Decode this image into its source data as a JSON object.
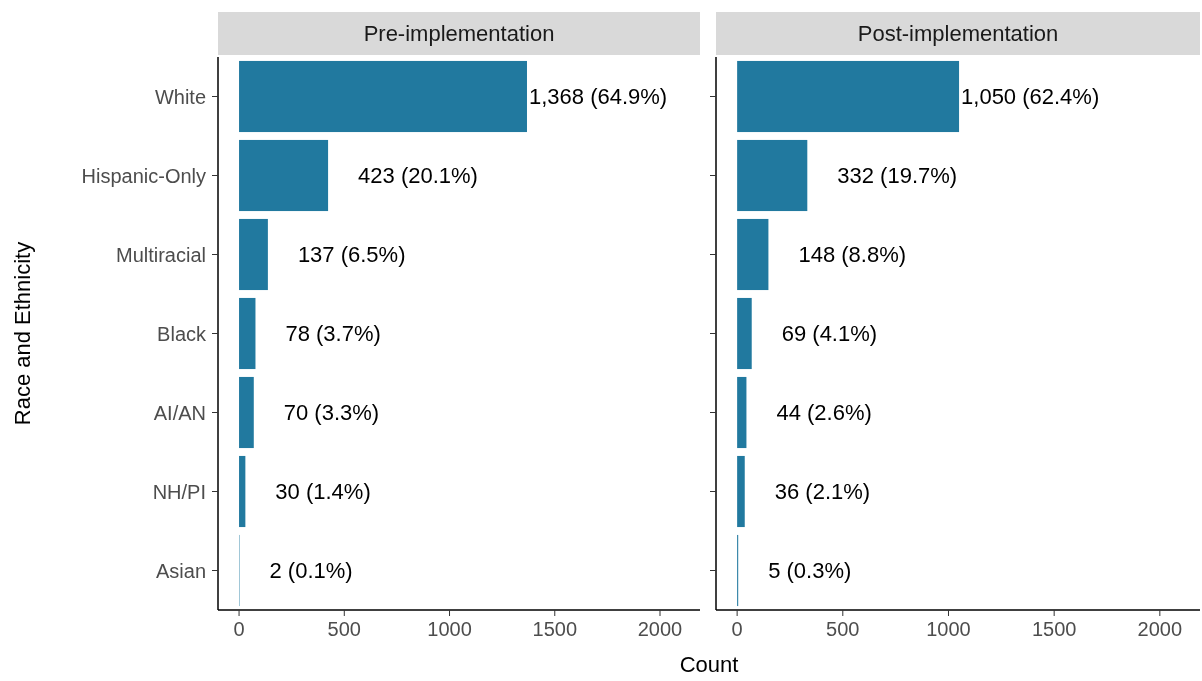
{
  "chart_data": [
    {
      "type": "bar",
      "orientation": "horizontal",
      "title": "Pre-implementation",
      "ylabel": "Race and Ethnicity",
      "categories": [
        "White",
        "Hispanic-Only",
        "Multiracial",
        "Black",
        "AI/AN",
        "NH/PI",
        "Asian"
      ],
      "values": [
        1368,
        423,
        137,
        78,
        70,
        30,
        2
      ],
      "value_labels": [
        "1,368 (64.9%)",
        "423 (20.1%)",
        "137 (6.5%)",
        "78 (3.7%)",
        "70 (3.3%)",
        "30 (1.4%)",
        "2 (0.1%)"
      ],
      "color": "#21799f",
      "xlim": [
        -100,
        2190
      ],
      "xticks": [
        0,
        500,
        1000,
        1500,
        2000
      ],
      "grid": false
    },
    {
      "type": "bar",
      "orientation": "horizontal",
      "title": "Post-implementation",
      "xlabel": "Count",
      "categories": [
        null,
        null,
        null,
        null,
        null,
        null,
        null
      ],
      "values": [
        1050,
        332,
        148,
        69,
        44,
        36,
        5
      ],
      "value_labels": [
        "1,050 (62.4%)",
        "332 (19.7%)",
        "148 (8.8%)",
        "69 (4.1%)",
        "44 (2.6%)",
        "36 (2.1%)",
        "5 (0.3%)"
      ],
      "color": "#21799f",
      "xlim": [
        -100,
        2190
      ],
      "xticks": [
        0,
        500,
        1000,
        1500,
        2000
      ],
      "tick_labels": "x",
      "grid": false
    }
  ]
}
